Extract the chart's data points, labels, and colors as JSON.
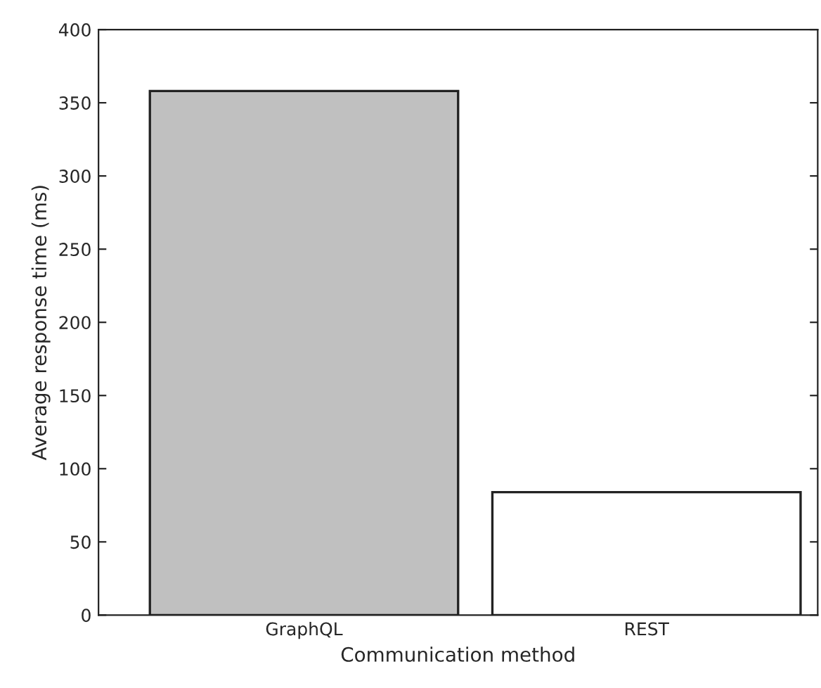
{
  "chart_data": {
    "type": "bar",
    "xlabel": "Communication method",
    "ylabel": "Average response time (ms)",
    "categories": [
      "GraphQL",
      "REST"
    ],
    "values": [
      358,
      84
    ],
    "colors": [
      "#c0c0c0",
      "#ffffff"
    ],
    "ylim": [
      0,
      400
    ],
    "yticks": [
      0,
      50,
      100,
      150,
      200,
      250,
      300,
      350,
      400
    ],
    "grid": false,
    "legend": false
  }
}
